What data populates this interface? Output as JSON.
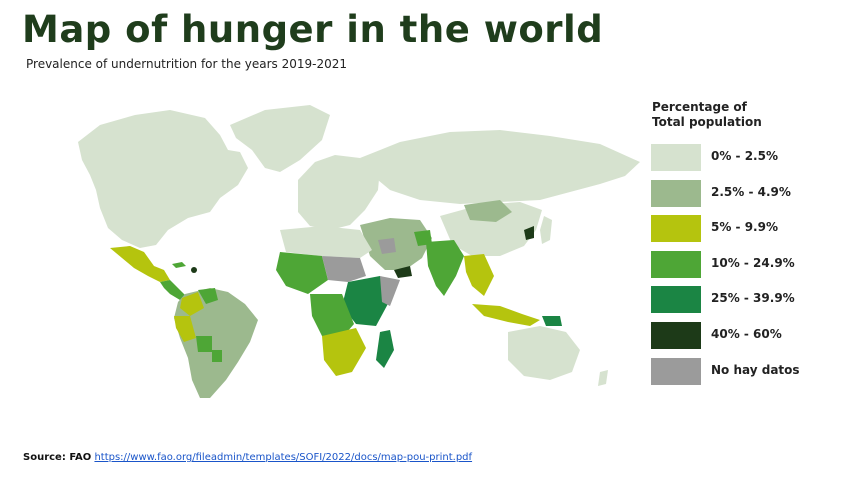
{
  "title": "Map of hunger in the world",
  "subtitle": "Prevalence of undernutrition for the years 2019-2021",
  "legend": {
    "title_line1": "Percentage of",
    "title_line2": "Total population",
    "items": [
      {
        "label": "0% - 2.5%",
        "color": "#d6e2cf"
      },
      {
        "label": "2.5% - 4.9%",
        "color": "#9cb98e"
      },
      {
        "label": "5% - 9.9%",
        "color": "#b5c40e"
      },
      {
        "label": "10% - 24.9%",
        "color": "#4ea636"
      },
      {
        "label": "25% - 39.9%",
        "color": "#1b8544"
      },
      {
        "label": "40% - 60%",
        "color": "#1d3a18"
      },
      {
        "label": "No hay datos",
        "color": "#9b9b9b"
      }
    ]
  },
  "source": {
    "prefix": "Source: FAO",
    "url": "https://www.fao.org/fileadmin/templates/SOFI/2022/docs/map-pou-print.pdf"
  }
}
